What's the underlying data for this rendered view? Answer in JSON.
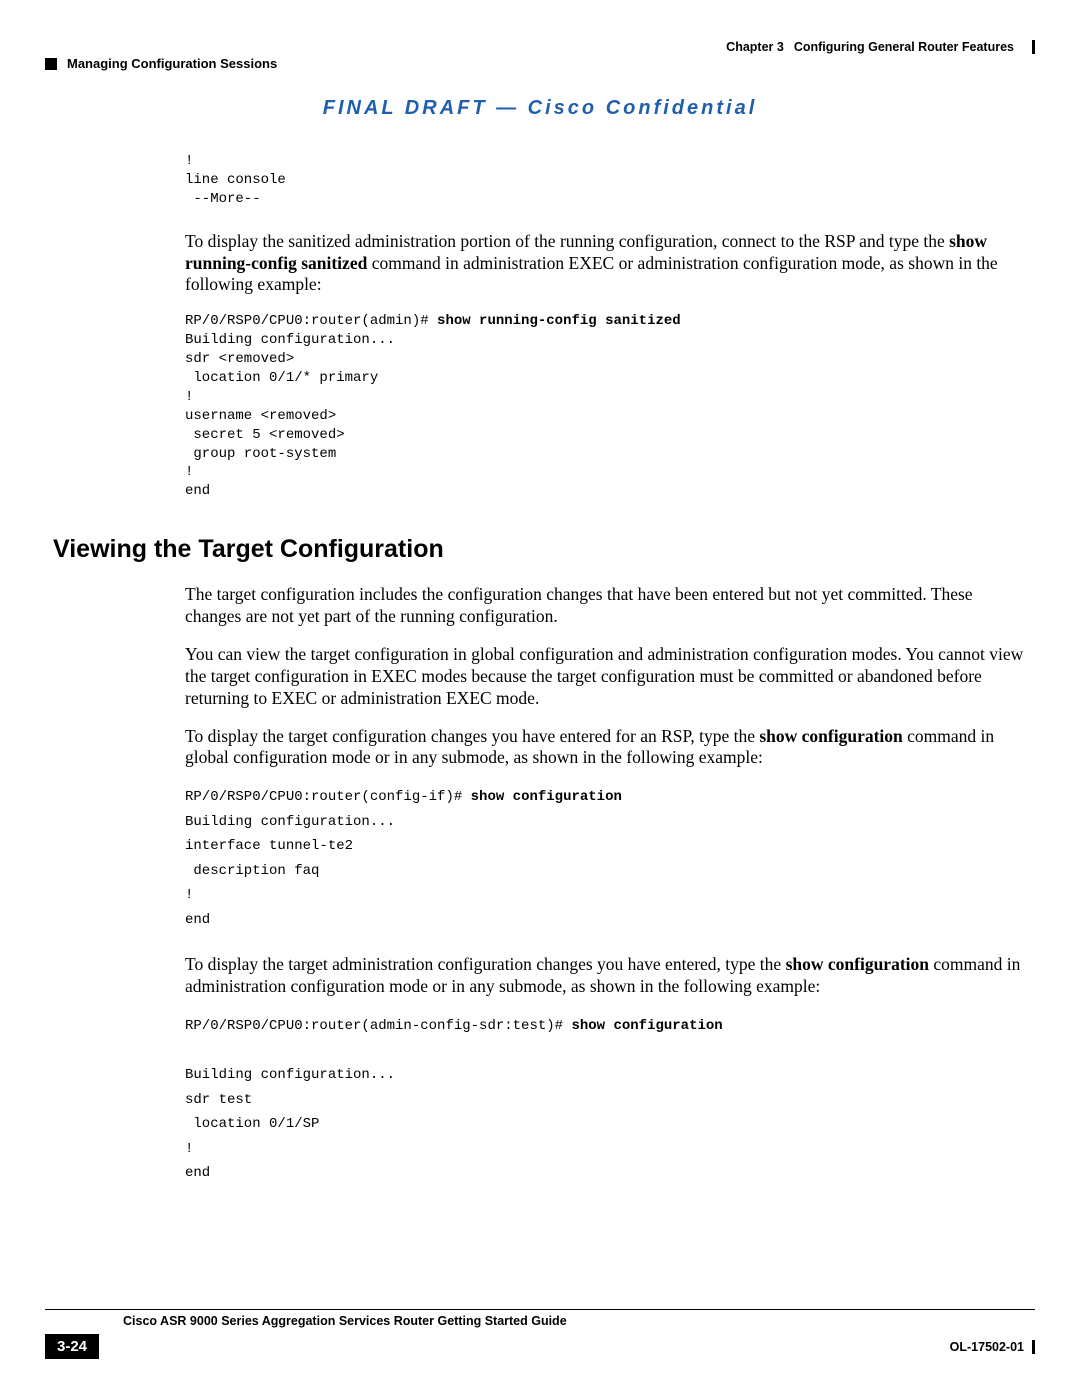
{
  "header": {
    "section": "Managing Configuration Sessions",
    "chapter_label": "Chapter 3",
    "chapter_title": "Configuring General Router Features"
  },
  "draft_banner": "FINAL DRAFT — Cisco Confidential",
  "code1": {
    "line1": "!",
    "line2": "line console ",
    "line3": " --More--"
  },
  "para1_pre": "To display the sanitized administration portion of the running configuration, connect to the RSP and type the ",
  "para1_bold": "show running-config sanitized",
  "para1_post": " command in administration EXEC or administration configuration mode, as shown in the following example:",
  "code2": {
    "prompt": "RP/0/RSP0/CPU0:router(admin)# ",
    "cmd": "show running-config sanitized",
    "l1": "Building configuration...",
    "l2": "sdr <removed>",
    "l3": " location 0/1/* primary",
    "l4": "!",
    "l5": "username <removed>",
    "l6": " secret 5 <removed>",
    "l7": " group root-system",
    "l8": "!",
    "l9": "end"
  },
  "section_heading": "Viewing the Target Configuration",
  "para2": "The target configuration includes the configuration changes that have been entered but not yet committed. These changes are not yet part of the running configuration.",
  "para3": "You can view the target configuration in global configuration and administration configuration modes. You cannot view the target configuration in EXEC modes because the target configuration must be committed or abandoned before returning to EXEC or administration EXEC mode.",
  "para4_pre": "To display the target configuration changes you have entered for an RSP, type the ",
  "para4_bold": "show configuration",
  "para4_post": " command in global configuration mode or in any submode, as shown in the following example:",
  "code3": {
    "prompt": "RP/0/RSP0/CPU0:router(config-if)# ",
    "cmd": "show configuration",
    "l1": "Building configuration...",
    "l2": "interface tunnel-te2",
    "l3": " description faq",
    "l4": "!",
    "l5": "end"
  },
  "para5_pre": "To display the target administration configuration changes you have entered, type the ",
  "para5_bold": "show configuration",
  "para5_post": " command in administration configuration mode or in any submode, as shown in the following example:",
  "code4": {
    "prompt": "RP/0/RSP0/CPU0:router(admin-config-sdr:test)# ",
    "cmd": "show configuration",
    "l1": "Building configuration...",
    "l2": "sdr test",
    "l3": " location 0/1/SP",
    "l4": "!",
    "l5": "end"
  },
  "footer": {
    "guide_title": "Cisco ASR 9000 Series Aggregation Services Router Getting Started Guide",
    "page_num": "3-24",
    "doc_code": "OL-17502-01"
  },
  "colors": {
    "banner": "#205fae",
    "text": "#000000",
    "bg": "#ffffff"
  }
}
